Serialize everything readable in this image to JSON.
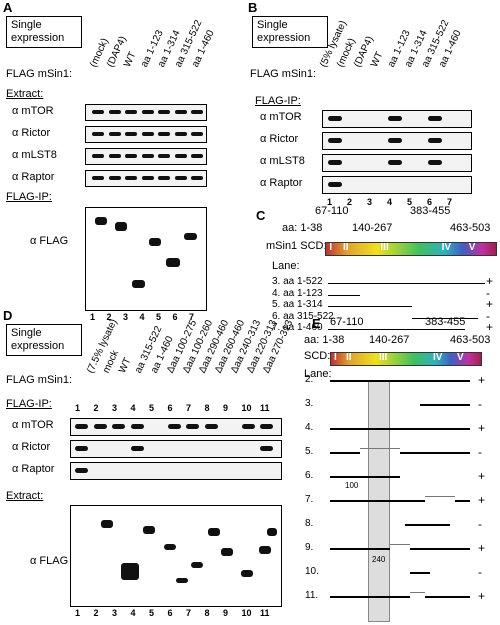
{
  "panelA": {
    "letter": "A",
    "boxText": [
      "Single",
      "expression"
    ],
    "flagLabel": "FLAG mSin1:",
    "lanes": [
      "(mock)",
      "(DAP4)",
      "WT",
      "aa 1-123",
      "aa 1-314",
      "aa 315-522",
      "aa 1-460"
    ],
    "extractHeader": "Extract:",
    "extractRows": [
      "α mTOR",
      "α Rictor",
      "α mLST8",
      "α Raptor"
    ],
    "flagIpHeader": "FLAG-IP:",
    "flagRow": "α FLAG",
    "laneNums": [
      "1",
      "2",
      "3",
      "4",
      "5",
      "6",
      "7"
    ]
  },
  "panelB": {
    "letter": "B",
    "boxText": [
      "Single",
      "expression"
    ],
    "flagLabel": "FLAG mSin1:",
    "lanes": [
      "(5% lysate)",
      "(mock)",
      "(DAP4)",
      "WT",
      "aa 1-123",
      "aa 1-314",
      "aa 315-522",
      "aa 1-460"
    ],
    "flagIpHeader": "FLAG-IP:",
    "rows": [
      "α mTOR",
      "α Rictor",
      "α mLST8",
      "α Raptor"
    ],
    "laneNums": [
      "1",
      "2",
      "3",
      "4",
      "5",
      "6",
      "7"
    ]
  },
  "panelC": {
    "letter": "C",
    "ranges": [
      "67-110",
      "383-455",
      "aa: 1-38",
      "140-267",
      "463-503"
    ],
    "scdLabel": "mSin1 SCD:",
    "domains": [
      "I",
      "II",
      "III",
      "IV",
      "V"
    ],
    "laneHeader": "Lane:",
    "entries": [
      {
        "text": "3. aa 1-522",
        "sign": "+"
      },
      {
        "text": "4. aa 1-123",
        "sign": "-"
      },
      {
        "text": "5. aa 1-314",
        "sign": "+"
      },
      {
        "text": "6. aa 315-522",
        "sign": "-"
      },
      {
        "text": "7. aa 1-460",
        "sign": "+"
      }
    ]
  },
  "panelD": {
    "letter": "D",
    "boxText": [
      "Single",
      "expression"
    ],
    "flagLabel": "FLAG mSin1:",
    "lanes": [
      "(7.5% lysate)",
      "mock",
      "WT",
      "aa 315-522",
      "aa 1-460",
      "Δaa 100-275",
      "Δaa 100-260",
      "Δaa 290-460",
      "Δaa 260-460",
      "Δaa 240-313",
      "Δaa 220-313",
      "Δaa 270-313"
    ],
    "flagIpHeader": "FLAG-IP:",
    "rows": [
      "α mTOR",
      "α Rictor",
      "α Raptor"
    ],
    "extractHeader": "Extract:",
    "flagRow": "α FLAG",
    "laneNums": [
      "1",
      "2",
      "3",
      "4",
      "5",
      "6",
      "7",
      "8",
      "9",
      "10",
      "11"
    ]
  },
  "panelE": {
    "letter": "E",
    "ranges": [
      "67-110",
      "383-455",
      "aa: 1-38",
      "140-267",
      "463-503"
    ],
    "scdLabel": "SCD:",
    "domains": [
      "I",
      "II",
      "III",
      "IV",
      "V"
    ],
    "laneHeader": "Lane:",
    "entries": [
      {
        "text": "2.",
        "sign": "+"
      },
      {
        "text": "3.",
        "sign": "-"
      },
      {
        "text": "4.",
        "sign": "+"
      },
      {
        "text": "5.",
        "sign": "-"
      },
      {
        "text": "6.",
        "sign": "+"
      },
      {
        "text": "7.",
        "sign": "+"
      },
      {
        "text": "8.",
        "sign": "-"
      },
      {
        "text": "9.",
        "sign": "+"
      },
      {
        "text": "10.",
        "sign": "-"
      },
      {
        "text": "11.",
        "sign": "+"
      }
    ],
    "mark100": "100",
    "mark240": "240"
  }
}
